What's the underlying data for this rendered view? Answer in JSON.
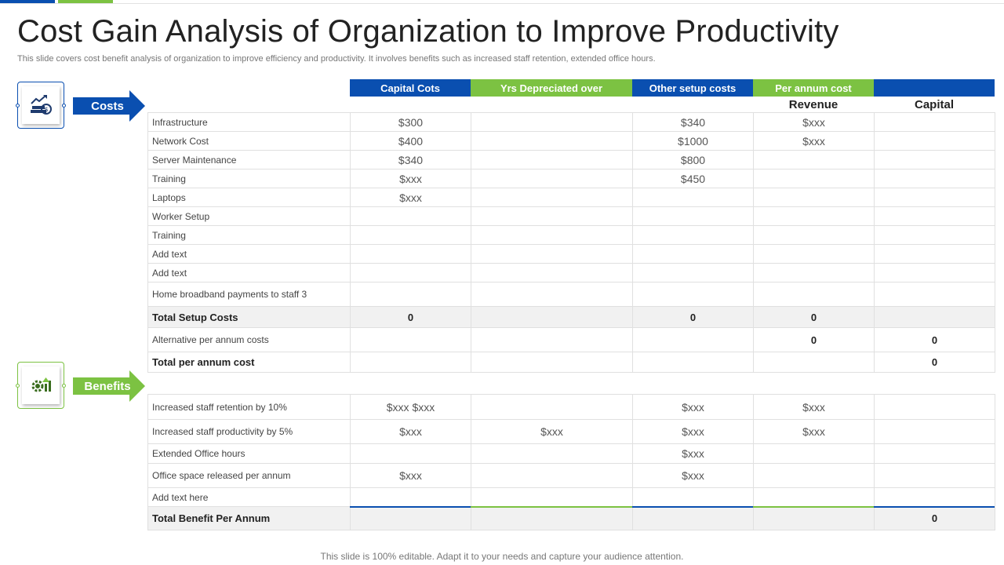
{
  "title": "Cost Gain Analysis of Organization to Improve Productivity",
  "subtitle": "This slide covers cost benefit analysis of organization to improve efficiency and productivity. It involves benefits such as increased staff retention, extended office hours.",
  "colors": {
    "blue": "#0a4fb0",
    "green": "#7cc242"
  },
  "sections": {
    "costs": {
      "label": "Costs",
      "icon": "money-growth-icon"
    },
    "benefits": {
      "label": "Benefits",
      "icon": "gear-growth-icon"
    }
  },
  "headers": [
    "Capital Cots",
    "Yrs Depreciated over",
    "Other setup costs",
    "Per annum cost",
    ""
  ],
  "subheaders": [
    "",
    "",
    "",
    "",
    "",
    "Revenue",
    "Capital"
  ],
  "cost_rows": [
    [
      "Infrastructure",
      "$300",
      "",
      "$340",
      "$xxx",
      ""
    ],
    [
      "Network Cost",
      "$400",
      "",
      "$1000",
      "$xxx",
      ""
    ],
    [
      "Server Maintenance",
      "$340",
      "",
      "$800",
      "",
      ""
    ],
    [
      "Training",
      "$xxx",
      "",
      "$450",
      "",
      ""
    ],
    [
      "Laptops",
      "$xxx",
      "",
      "",
      "",
      ""
    ],
    [
      "Worker Setup",
      "",
      "",
      "",
      "",
      ""
    ],
    [
      "Training",
      "",
      "",
      "",
      "",
      ""
    ],
    [
      "Add text",
      "",
      "",
      "",
      "",
      ""
    ],
    [
      "Add text",
      "",
      "",
      "",
      "",
      ""
    ],
    [
      "Home broadband payments to staff    3",
      "",
      "",
      "",
      "",
      ""
    ]
  ],
  "total_setup": [
    "Total Setup Costs",
    "0",
    "",
    "0",
    "0",
    ""
  ],
  "alt_row": [
    "Alternative per annum costs",
    "",
    "",
    "",
    "0",
    "0"
  ],
  "total_annum": [
    "Total per annum cost",
    "",
    "",
    "",
    "",
    "0"
  ],
  "benefit_rows": [
    [
      "Increased staff retention by 10%",
      "$xxx    $xxx",
      "",
      "$xxx",
      "$xxx",
      ""
    ],
    [
      "Increased staff productivity by 5%",
      "$xxx",
      "$xxx",
      "$xxx",
      "$xxx",
      ""
    ],
    [
      "Extended Office hours",
      "",
      "",
      "$xxx",
      "",
      ""
    ],
    [
      "Office space released per annum",
      "$xxx",
      "",
      "$xxx",
      "",
      ""
    ],
    [
      "Add text here",
      "",
      "",
      "",
      "",
      ""
    ]
  ],
  "total_benefit": [
    "Total Benefit Per Annum",
    "",
    "",
    "",
    "",
    "0"
  ],
  "footer": "This slide is 100% editable. Adapt it to your  needs and capture your audience attention."
}
